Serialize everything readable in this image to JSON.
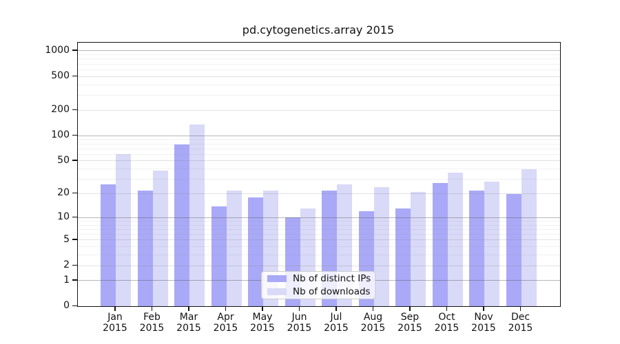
{
  "chart_data": {
    "type": "bar",
    "title": "pd.cytogenetics.array 2015",
    "categories": [
      "Jan",
      "Feb",
      "Mar",
      "Apr",
      "May",
      "Jun",
      "Jul",
      "Aug",
      "Sep",
      "Oct",
      "Nov",
      "Dec"
    ],
    "category_year": "2015",
    "series": [
      {
        "name": "Nb of distinct IPs",
        "color": "#a9a9f7",
        "values": [
          26,
          22,
          78,
          14,
          18,
          10,
          22,
          12,
          13,
          27,
          22,
          20
        ]
      },
      {
        "name": "Nb of downloads",
        "color": "#d9d9f8",
        "values": [
          60,
          38,
          135,
          22,
          22,
          13,
          26,
          24,
          21,
          36,
          28,
          40
        ]
      }
    ],
    "yscale": "log1p",
    "y_tick_labels": [
      "1000",
      "500",
      "200",
      "100",
      "50",
      "20",
      "10",
      "5",
      "2",
      "1",
      "0"
    ],
    "y_tick_values": [
      1000,
      500,
      200,
      100,
      50,
      20,
      10,
      5,
      2,
      1,
      0
    ],
    "ylim": [
      0,
      1250
    ],
    "xlabel": "",
    "ylabel": "",
    "grid": true,
    "legend_position": "lower center"
  }
}
